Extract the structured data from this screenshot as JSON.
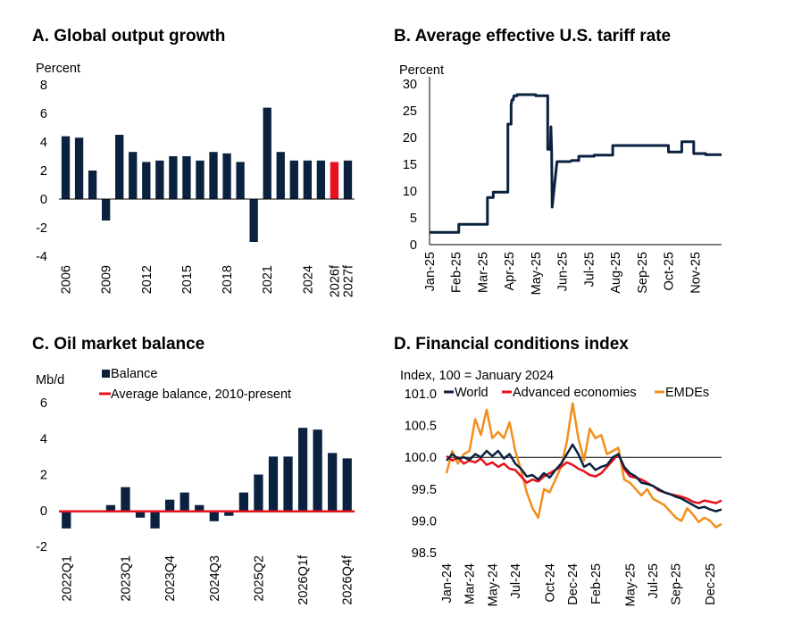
{
  "chart_data": [
    {
      "type": "bar",
      "title": "A. Global output growth",
      "ylabel": "Percent",
      "ylim": [
        -4,
        8
      ],
      "yticks": [
        8,
        6,
        4,
        2,
        0,
        -2,
        -4
      ],
      "categories": [
        "2006",
        "2007",
        "2008",
        "2009",
        "2010",
        "2011",
        "2012",
        "2013",
        "2014",
        "2015",
        "2016",
        "2017",
        "2018",
        "2019",
        "2020",
        "2021",
        "2022",
        "2023",
        "2024",
        "2025e",
        "2026f",
        "2027f"
      ],
      "values": [
        4.4,
        4.3,
        2.0,
        -1.5,
        4.5,
        3.3,
        2.6,
        2.7,
        3.0,
        3.0,
        2.7,
        3.3,
        3.2,
        2.6,
        -3.0,
        6.4,
        3.3,
        2.7,
        2.7,
        2.7,
        2.6,
        2.7
      ],
      "x_tick_labels": [
        "2006",
        "2009",
        "2012",
        "2015",
        "2018",
        "2021",
        "2024",
        "2026f",
        "2027f"
      ],
      "highlight_category": "2026f",
      "colors": {
        "bar": "#0a2240",
        "highlight": "#e8111e"
      }
    },
    {
      "type": "line",
      "title": "B. Average effective U.S. tariff rate",
      "ylabel": "Percent",
      "ylim": [
        0,
        30
      ],
      "yticks": [
        30,
        25,
        20,
        15,
        10,
        5,
        0
      ],
      "x_tick_labels": [
        "Jan-25",
        "Feb-25",
        "Mar-25",
        "Apr-25",
        "May-25",
        "Jun-25",
        "Jul-25",
        "Aug-25",
        "Sep-25",
        "Oct-25",
        "Nov-25"
      ],
      "xlim": [
        0,
        11
      ],
      "series": [
        {
          "name": "Average effective U.S. tariff rate",
          "x": [
            0,
            1.1,
            1.1,
            2.0,
            2.0,
            2.18,
            2.18,
            2.4,
            2.4,
            2.95,
            2.95,
            3.07,
            3.07,
            3.1,
            3.15,
            3.18,
            3.3,
            3.3,
            4.0,
            4.0,
            4.45,
            4.45,
            4.48,
            4.52,
            4.55,
            4.57,
            4.6,
            4.62,
            4.8,
            4.82,
            5.3,
            5.35,
            5.62,
            5.62,
            6.2,
            6.2,
            6.9,
            6.9,
            9.0,
            9.0,
            9.5,
            9.5,
            9.95,
            9.95,
            10.4,
            10.4,
            11.0
          ],
          "y": [
            2.3,
            2.3,
            3.8,
            3.8,
            3.8,
            3.8,
            8.8,
            8.8,
            9.8,
            9.8,
            22.5,
            22.5,
            26.0,
            27.0,
            27.0,
            27.8,
            27.8,
            28.0,
            28.0,
            27.8,
            27.8,
            17.8,
            17.8,
            17.8,
            17.8,
            22.0,
            17.5,
            7.0,
            15.5,
            15.5,
            15.5,
            15.7,
            15.7,
            16.5,
            16.5,
            16.7,
            16.7,
            18.5,
            18.5,
            17.3,
            17.3,
            19.2,
            19.2,
            17.0,
            17.0,
            16.8,
            16.8
          ]
        }
      ],
      "colors": {
        "line": "#0a2240"
      }
    },
    {
      "type": "bar",
      "title": "C. Oil market balance",
      "ylabel": "Mb/d",
      "ylim": [
        -2,
        6
      ],
      "yticks": [
        6,
        4,
        2,
        0,
        -2
      ],
      "categories": [
        "2022Q1",
        "2022Q2",
        "2022Q3",
        "2022Q4",
        "2023Q1",
        "2023Q2",
        "2023Q3",
        "2023Q4",
        "2024Q1",
        "2024Q2",
        "2024Q3",
        "2024Q4",
        "2025Q1",
        "2025Q2",
        "2025Q3",
        "2025Q4",
        "2026Q1f",
        "2026Q2f",
        "2026Q3f",
        "2026Q4f"
      ],
      "series": [
        {
          "name": "Balance",
          "type": "bar",
          "values": [
            -1.0,
            -0.1,
            -0.05,
            0.3,
            1.3,
            -0.4,
            -1.0,
            0.6,
            1.0,
            0.3,
            -0.6,
            -0.3,
            1.0,
            2.0,
            3.0,
            3.0,
            4.6,
            4.5,
            3.2,
            2.9
          ]
        },
        {
          "name": "Average balance, 2010-present",
          "type": "line",
          "values": [
            -0.05,
            -0.05,
            -0.05,
            -0.05,
            -0.05,
            -0.05,
            -0.05,
            -0.05,
            -0.05,
            -0.05,
            -0.05,
            -0.05,
            -0.05,
            -0.05,
            -0.05,
            -0.05,
            -0.05,
            -0.05,
            -0.05,
            -0.05
          ]
        }
      ],
      "x_tick_labels": [
        "2022Q1",
        "2023Q1",
        "2023Q4",
        "2024Q3",
        "2025Q2",
        "2026Q1f",
        "2026Q4f"
      ],
      "legend": [
        "Balance",
        "Average balance, 2010-present"
      ],
      "legend_position": "top-left",
      "colors": {
        "bar": "#0a2240",
        "line": "#e8111e"
      }
    },
    {
      "type": "line",
      "title": "D. Financial conditions index",
      "ylabel": "Index, 100 = January 2024",
      "ylim": [
        98.5,
        101.0
      ],
      "yticks": [
        "101.0",
        "100.5",
        "100.0",
        "99.5",
        "99.0",
        "98.5"
      ],
      "reference_line": 100.0,
      "x_tick_labels": [
        "Jan-24",
        "Mar-24",
        "May-24",
        "Jul-24",
        "Oct-24",
        "Dec-24",
        "Feb-25",
        "May-25",
        "Jul-25",
        "Sep-25",
        "Dec-25"
      ],
      "xlim": [
        0,
        24
      ],
      "legend": [
        "World",
        "Advanced economies",
        "EMDEs"
      ],
      "legend_position": "top",
      "series": [
        {
          "name": "World",
          "x": [
            0,
            0.5,
            1,
            1.5,
            2,
            2.5,
            3,
            3.5,
            4,
            4.5,
            5,
            5.5,
            6,
            6.5,
            7,
            7.5,
            8,
            8.5,
            9,
            9.5,
            10,
            10.5,
            11,
            11.5,
            12,
            12.5,
            13,
            13.5,
            14,
            14.5,
            15,
            15.5,
            16,
            16.5,
            17,
            17.5,
            18,
            18.5,
            19,
            19.5,
            20,
            20.5,
            21,
            21.5,
            22,
            22.5,
            23,
            23.5,
            24
          ],
          "y": [
            99.95,
            100.05,
            99.98,
            100.0,
            99.96,
            100.05,
            100.0,
            100.1,
            100.02,
            100.1,
            99.98,
            100.05,
            99.9,
            99.82,
            99.7,
            99.72,
            99.65,
            99.75,
            99.68,
            99.8,
            99.9,
            100.05,
            100.2,
            100.05,
            99.85,
            99.9,
            99.8,
            99.85,
            99.88,
            100.0,
            100.05,
            99.85,
            99.75,
            99.7,
            99.6,
            99.58,
            99.55,
            99.5,
            99.45,
            99.42,
            99.38,
            99.35,
            99.3,
            99.25,
            99.2,
            99.22,
            99.18,
            99.15,
            99.18
          ]
        },
        {
          "name": "Advanced economies",
          "x": [
            0,
            0.5,
            1,
            1.5,
            2,
            2.5,
            3,
            3.5,
            4,
            4.5,
            5,
            5.5,
            6,
            6.5,
            7,
            7.5,
            8,
            8.5,
            9,
            9.5,
            10,
            10.5,
            11,
            11.5,
            12,
            12.5,
            13,
            13.5,
            14,
            14.5,
            15,
            15.5,
            16,
            16.5,
            17,
            17.5,
            18,
            18.5,
            19,
            19.5,
            20,
            20.5,
            21,
            21.5,
            22,
            22.5,
            23,
            23.5,
            24
          ],
          "y": [
            100.02,
            99.95,
            100.0,
            99.9,
            99.95,
            99.92,
            99.98,
            99.88,
            99.92,
            99.85,
            99.9,
            99.82,
            99.8,
            99.7,
            99.6,
            99.65,
            99.62,
            99.7,
            99.75,
            99.8,
            99.85,
            99.92,
            99.88,
            99.82,
            99.78,
            99.72,
            99.7,
            99.75,
            99.85,
            99.95,
            100.05,
            99.82,
            99.7,
            99.68,
            99.65,
            99.6,
            99.55,
            99.48,
            99.45,
            99.42,
            99.4,
            99.38,
            99.35,
            99.3,
            99.28,
            99.32,
            99.3,
            99.28,
            99.32
          ]
        },
        {
          "name": "EMDEs",
          "x": [
            0,
            0.5,
            1,
            1.5,
            2,
            2.5,
            3,
            3.5,
            4,
            4.5,
            5,
            5.5,
            6,
            6.5,
            7,
            7.5,
            8,
            8.5,
            9,
            9.5,
            10,
            10.5,
            11,
            11.5,
            12,
            12.5,
            13,
            13.5,
            14,
            14.5,
            15,
            15.5,
            16,
            16.5,
            17,
            17.5,
            18,
            18.5,
            19,
            19.5,
            20,
            20.5,
            21,
            21.5,
            22,
            22.5,
            23,
            23.5,
            24
          ],
          "y": [
            99.75,
            100.1,
            99.9,
            100.05,
            100.1,
            100.6,
            100.35,
            100.75,
            100.3,
            100.4,
            100.3,
            100.55,
            100.1,
            99.8,
            99.45,
            99.2,
            99.05,
            99.5,
            99.45,
            99.65,
            99.85,
            100.25,
            100.85,
            100.3,
            99.95,
            100.45,
            100.3,
            100.35,
            100.05,
            100.1,
            100.15,
            99.65,
            99.6,
            99.5,
            99.4,
            99.5,
            99.35,
            99.3,
            99.25,
            99.15,
            99.05,
            99.0,
            99.2,
            99.1,
            98.98,
            99.05,
            99.0,
            98.9,
            98.95
          ]
        }
      ],
      "colors": {
        "World": "#0a2240",
        "Advanced economies": "#e8111e",
        "EMDEs": "#f28e1c",
        "reference": "#000000"
      }
    }
  ]
}
